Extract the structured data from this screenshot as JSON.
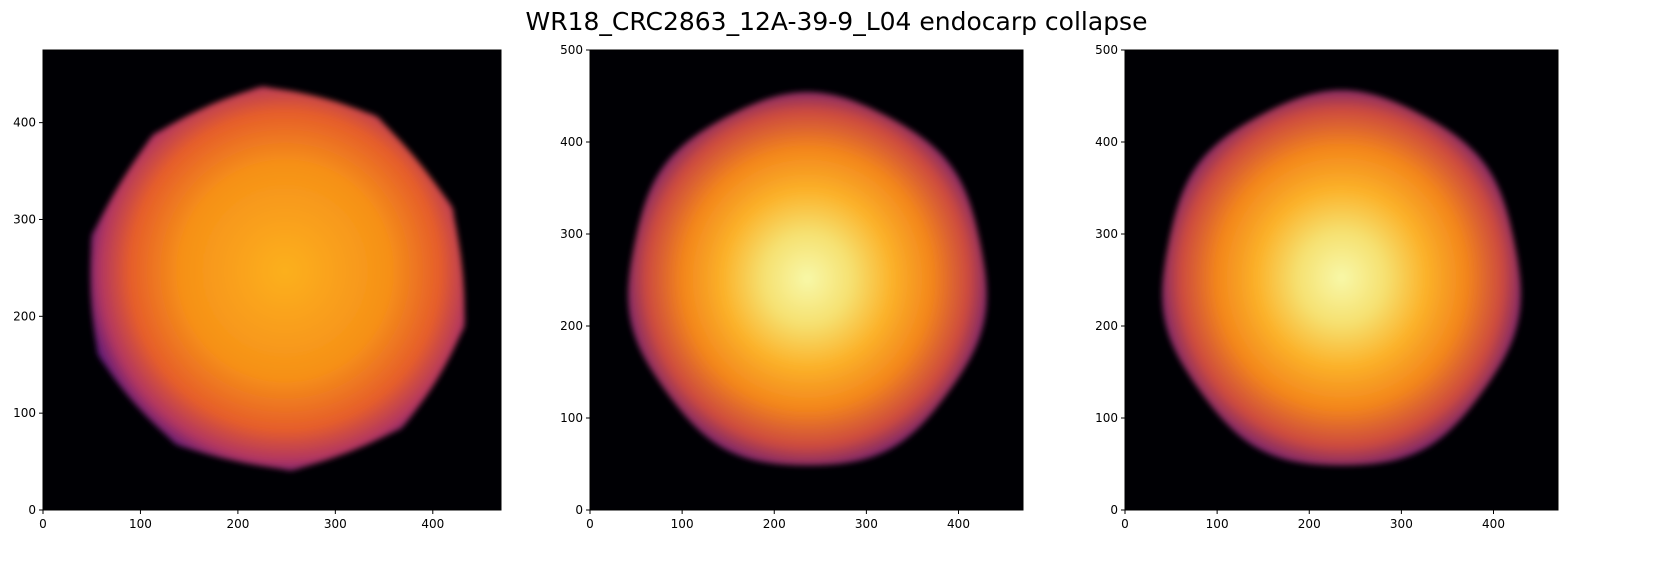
{
  "figure": {
    "title": "WR18_CRC2863_12A-39-9_L04 endocarp collapse"
  },
  "chart_data": [
    {
      "type": "heatmap",
      "colormap": "inferno",
      "background_color": "#000004",
      "xlim": [
        0,
        470
      ],
      "ylim": [
        0,
        475
      ],
      "xticks": [
        0,
        100,
        200,
        300,
        400
      ],
      "yticks": [
        0,
        100,
        200,
        300,
        400
      ],
      "xtick_labels": [
        "0",
        "100",
        "200",
        "300",
        "400"
      ],
      "ytick_labels": [
        "0",
        "100",
        "200",
        "300",
        "400"
      ],
      "content": "top-down projection: roughly circular, lobed endocarp outline",
      "object_extent": {
        "x": [
          37,
          433
        ],
        "y": [
          37,
          437
        ]
      },
      "center": [
        240,
        237
      ]
    },
    {
      "type": "heatmap",
      "colormap": "inferno",
      "background_color": "#000004",
      "xlim": [
        0,
        470
      ],
      "ylim": [
        0,
        500
      ],
      "xticks": [
        0,
        100,
        200,
        300,
        400
      ],
      "yticks": [
        0,
        100,
        200,
        300,
        400,
        500
      ],
      "xtick_labels": [
        "0",
        "100",
        "200",
        "300",
        "400"
      ],
      "ytick_labels": [
        "0",
        "100",
        "200",
        "300",
        "400",
        "500"
      ],
      "content": "side projection: rounded endocarp with bright central core",
      "object_extent": {
        "x": [
          37,
          433
        ],
        "y": [
          45,
          443
        ]
      },
      "center": [
        236,
        249
      ]
    },
    {
      "type": "heatmap",
      "colormap": "inferno",
      "background_color": "#000004",
      "xlim": [
        0,
        470
      ],
      "ylim": [
        0,
        500
      ],
      "xticks": [
        0,
        100,
        200,
        300,
        400
      ],
      "yticks": [
        0,
        100,
        200,
        300,
        400,
        500
      ],
      "xtick_labels": [
        "0",
        "100",
        "200",
        "300",
        "400"
      ],
      "ytick_labels": [
        "0",
        "100",
        "200",
        "300",
        "400",
        "500"
      ],
      "content": "orthogonal side projection: rounded endocarp with bright central core",
      "object_extent": {
        "x": [
          37,
          433
        ],
        "y": [
          50,
          450
        ]
      },
      "center": [
        235,
        250
      ]
    }
  ]
}
